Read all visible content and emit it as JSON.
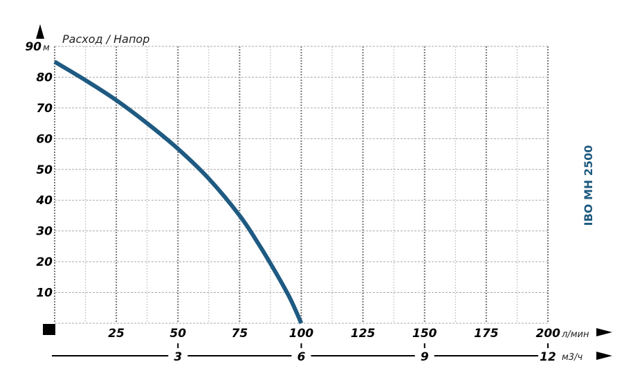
{
  "chart_data": {
    "type": "line",
    "title": "Расход / Напор",
    "model_label": "IBO MH 2500",
    "xlabel_unit": "л/мин",
    "ylabel_unit": "м",
    "x2label_unit": "м3/ч",
    "xlim": [
      0,
      200
    ],
    "ylim": [
      0,
      90
    ],
    "x_ticks": [
      25,
      50,
      75,
      100,
      125,
      150,
      175,
      200
    ],
    "x_tick_labels": [
      "25",
      "50",
      "75",
      "100",
      "125",
      "150",
      "175",
      "200"
    ],
    "y_ticks": [
      10,
      20,
      30,
      40,
      50,
      60,
      70,
      80,
      90
    ],
    "y_tick_labels": [
      "10",
      "20",
      "30",
      "40",
      "50",
      "60",
      "70",
      "80",
      "90"
    ],
    "x2_ticks": [
      3,
      6,
      9,
      12
    ],
    "x2_tick_labels": [
      "3",
      "6",
      "9",
      "12"
    ],
    "grid": true,
    "series": [
      {
        "x": [
          0,
          12.5,
          25,
          37.5,
          50,
          62.5,
          75,
          82.5,
          90,
          95.5,
          100
        ],
        "y": [
          85,
          79,
          72.5,
          65,
          56.7,
          47,
          35,
          26,
          16,
          8,
          0
        ]
      }
    ],
    "colors": {
      "curve": "#1e5a82",
      "model_label": "#1f5a7f",
      "grid": "#999999",
      "axis": "#000000"
    }
  }
}
